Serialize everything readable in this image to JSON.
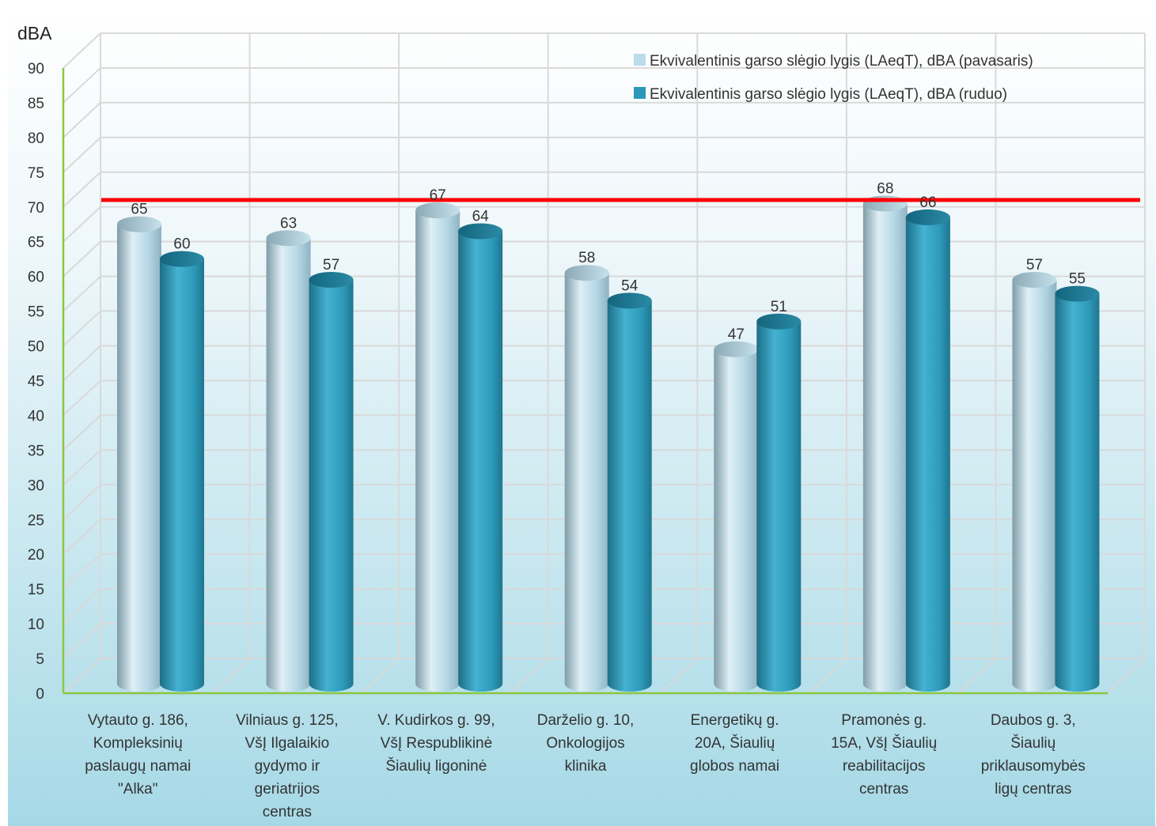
{
  "chart_data": {
    "type": "bar",
    "ylabel": "dBA",
    "ylim": [
      0,
      90
    ],
    "y_ticks": [
      0,
      5,
      10,
      15,
      20,
      25,
      30,
      35,
      40,
      45,
      50,
      55,
      60,
      65,
      70,
      75,
      80,
      85,
      90
    ],
    "grid": true,
    "legend_position": "top-right",
    "reference_line": {
      "value": 68.5,
      "color": "#ff0000"
    },
    "categories": [
      [
        "Vytauto g. 186,",
        "Kompleksinių",
        "paslaugų namai",
        "\"Alka\""
      ],
      [
        "Vilniaus g. 125,",
        "VšĮ Ilgalaikio",
        "gydymo ir",
        "geriatrijos",
        "centras"
      ],
      [
        "V. Kudirkos g. 99,",
        "VšĮ Respublikinė",
        "Šiaulių ligoninė"
      ],
      [
        "Darželio g. 10,",
        "Onkologijos",
        "klinika"
      ],
      [
        "Energetikų g.",
        "20A,  Šiaulių",
        "globos namai"
      ],
      [
        "Pramonės g.",
        "15A, VšĮ Šiaulių",
        "reabilitacijos",
        "centras"
      ],
      [
        "Daubos g. 3,",
        "Šiaulių",
        "priklausomybės",
        "ligų centras"
      ]
    ],
    "series": [
      {
        "name": "Ekvivalentinis garso slėgio lygis (LAeqT), dBA (pavasaris)",
        "values": [
          65,
          63,
          67,
          58,
          47,
          68,
          57
        ],
        "color": "#b9dcea"
      },
      {
        "name": "Ekvivalentinis garso slėgio lygis (LAeqT), dBA (ruduo)",
        "values": [
          60,
          57,
          64,
          54,
          51,
          66,
          55
        ],
        "color": "#2c97b6"
      }
    ]
  }
}
